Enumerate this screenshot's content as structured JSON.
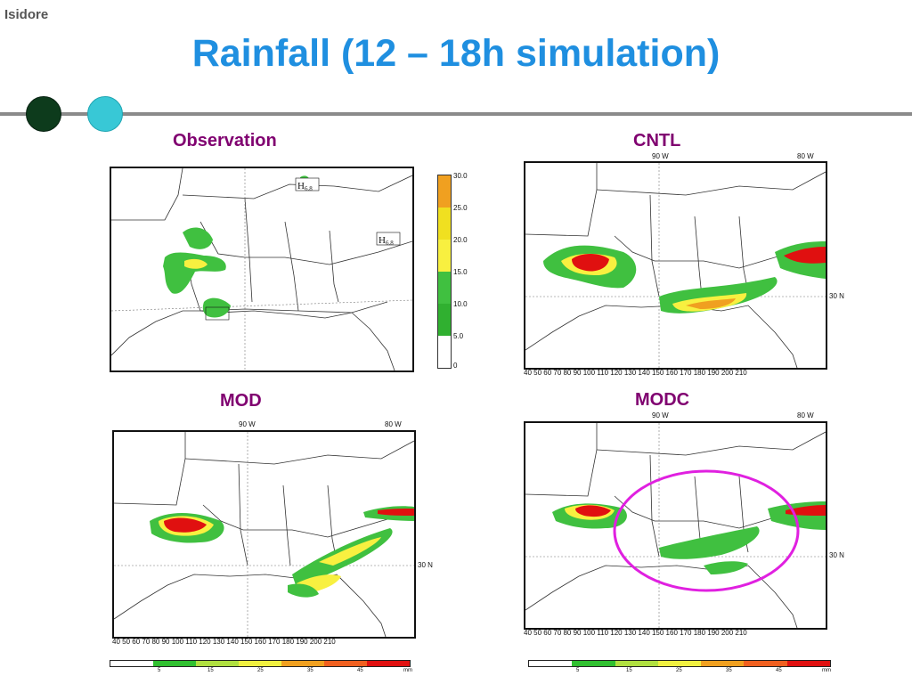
{
  "slide": {
    "tag": "Isidore",
    "title": "Rainfall (12 – 18h simulation)"
  },
  "panels": {
    "observation": {
      "label": "Observation"
    },
    "cntl": {
      "label": "CNTL",
      "lon_label_left": "90 W",
      "lon_label_right": "80 W",
      "lat_label": "30 N"
    },
    "mod": {
      "label": "MOD",
      "lon_label_left": "90 W",
      "lon_label_right": "80 W",
      "lat_label": "30 N"
    },
    "modc": {
      "label": "MODC",
      "lon_label_left": "90 W",
      "lon_label_right": "80 W",
      "lat_label": "30 N"
    }
  },
  "x_ticks": "40 50 60 70 80 90 100 110 120 130 140 150 160 170 180 190 200 210",
  "obs_colorbar": {
    "labels": [
      "30.0",
      "25.0",
      "20.0",
      "15.0",
      "10.0",
      "5.0",
      "0"
    ],
    "colors": [
      "#f0a020",
      "#f0e020",
      "#f8f040",
      "#a8e040",
      "#40c040",
      "#30b030",
      "#ffffff"
    ]
  },
  "model_colorbar": {
    "labels": [
      "5",
      "15",
      "25",
      "35",
      "45",
      "mm"
    ],
    "colors": [
      "#ffffff",
      "#30c030",
      "#b0e040",
      "#f0f040",
      "#f0a020",
      "#f06020",
      "#e01010"
    ]
  },
  "obs_markers": [
    "H",
    "H"
  ],
  "obs_marker_values": [
    "6.8",
    "6.8"
  ],
  "colors": {
    "title": "#1f8fe0",
    "panel_label": "#800070",
    "highlight_circle": "#e020e0"
  }
}
